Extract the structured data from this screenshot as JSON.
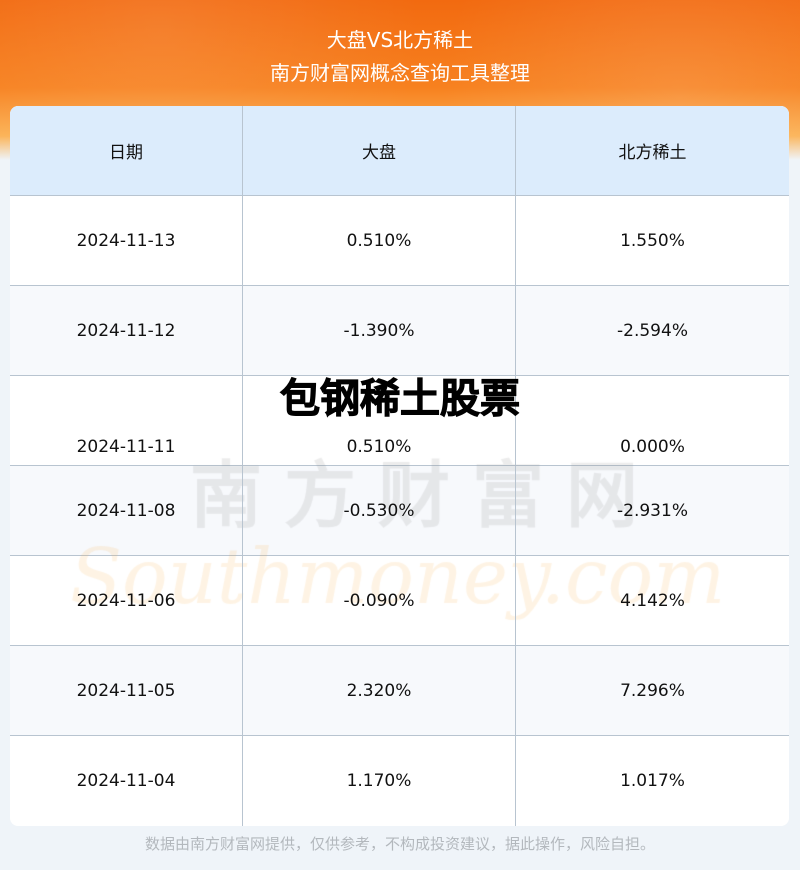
{
  "header": {
    "title": "大盘VS北方稀土",
    "subtitle": "南方财富网概念查询工具整理"
  },
  "table": {
    "columns": [
      "日期",
      "大盘",
      "北方稀土"
    ],
    "rows": [
      [
        "2024-11-13",
        "0.510%",
        "1.550%"
      ],
      [
        "2024-11-12",
        "-1.390%",
        "-2.594%"
      ],
      [
        "2024-11-11",
        "0.510%",
        "0.000%"
      ],
      [
        "2024-11-08",
        "-0.530%",
        "-2.931%"
      ],
      [
        "2024-11-06",
        "-0.090%",
        "4.142%"
      ],
      [
        "2024-11-05",
        "2.320%",
        "7.296%"
      ],
      [
        "2024-11-04",
        "1.170%",
        "1.017%"
      ]
    ]
  },
  "overlay_title": "包钢稀土股票",
  "watermark": {
    "cn": "南方财富网",
    "en": "Southmoney.com"
  },
  "footer": "数据由南方财富网提供，仅供参考，不构成投资建议，据此操作，风险自担。",
  "colors": {
    "banner": "#f26a10",
    "header_row": "#dcecfc",
    "border": "#b8c4d0"
  }
}
